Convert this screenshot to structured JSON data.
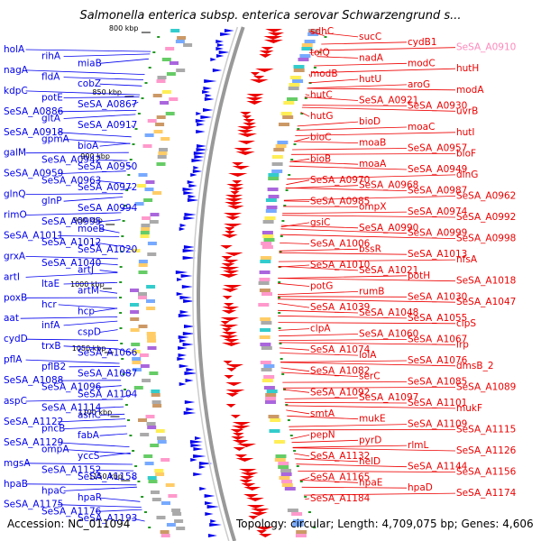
{
  "title": "Salmonella enterica subsp. enterica serovar Schwarzengrund s...",
  "footer": {
    "accession": "Accession: NC_011094",
    "topology": "Topology: circular; Length: 4,709,075 bp; Genes: 4,606"
  },
  "colors": {
    "forward_strand": "#0000ee",
    "reverse_strand": "#ee0000",
    "backbone": "#999999",
    "tick_dot": "#229922",
    "highlight_label": "#ff88bb"
  },
  "ticks": [
    "800 kbp",
    "850 kbp",
    "900 kbp",
    "950 kbp",
    "1000 kbp",
    "1050 kbp",
    "1100 kbp",
    "1150 kbp"
  ],
  "left_labels": [
    "holA",
    "rihA",
    "miaB",
    "nagA",
    "fldA",
    "cobZ",
    "kdpC",
    "potE",
    "SeSA_A0867",
    "SeSA_A0886",
    "gltA",
    "SeSA_A0917",
    "SeSA_A0918",
    "gpmA",
    "bioA",
    "galM",
    "SeSA_A0942",
    "SeSA_A0950",
    "SeSA_A0959",
    "SeSA_A0963",
    "SeSA_A0972",
    "glnQ",
    "glnP",
    "SeSA_A0994",
    "rimO",
    "SeSA_A0995",
    "moeB",
    "SeSA_A1011",
    "SeSA_A1012",
    "SeSA_A1020",
    "grxA",
    "SeSA_A1040",
    "artJ",
    "artI",
    "ltaE",
    "artM",
    "poxB",
    "hcr",
    "hcp",
    "aat",
    "infA",
    "cspD",
    "cydD",
    "trxB",
    "SeSA_A1066",
    "pflA",
    "pflB2",
    "SeSA_A1087",
    "SeSA_A1088",
    "SeSA_A1096",
    "SeSA_A1104",
    "aspC",
    "SeSA_A1114",
    "asnC",
    "SeSA_A1122",
    "pncB",
    "fabA",
    "SeSA_A1129",
    "ompA",
    "yccS",
    "mgsA",
    "SeSA_A1152",
    "SeSA_A1158",
    "hpaB",
    "hpaC",
    "hpaR",
    "SeSA_A1175",
    "SeSA_A1176",
    "SeSA_A1193"
  ],
  "right_labels": [
    "sdhC",
    "sucC",
    "cydB1",
    "SeSA_A0910",
    "tolQ",
    "nadA",
    "modC",
    "hutH",
    "modB",
    "hutU",
    "aroG",
    "modA",
    "hutC",
    "SeSA_A0921",
    "SeSA_A0930",
    "uvrB",
    "hutG",
    "bioD",
    "moaC",
    "hutI",
    "bioC",
    "moaB",
    "SeSA_A0957",
    "bioF",
    "bioB",
    "moaA",
    "SeSA_A0949",
    "dinG",
    "SeSA_A0970",
    "SeSA_A0968",
    "SeSA_A0987",
    "SeSA_A0962",
    "SeSA_A0985",
    "ompX",
    "SeSA_A0974",
    "SeSA_A0992",
    "gsiC",
    "SeSA_A0990",
    "SeSA_A0999",
    "SeSA_A0998",
    "SeSA_A1006",
    "bssR",
    "SeSA_A1013",
    "nfsA",
    "SeSA_A1010",
    "SeSA_A1021",
    "potH",
    "SeSA_A1018",
    "potG",
    "rumB",
    "SeSA_A1030",
    "SeSA_A1047",
    "SeSA_A1039",
    "SeSA_A1048",
    "SeSA_A1055",
    "clpS",
    "clpA",
    "SeSA_A1060",
    "SeSA_A1067",
    "lrp",
    "SeSA_A1074",
    "lolA",
    "SeSA_A1076",
    "dmsB_2",
    "SeSA_A1082",
    "serC",
    "SeSA_A1085",
    "SeSA_A1089",
    "SeSA_A1092",
    "SeSA_A1097",
    "SeSA_A1101",
    "mukF",
    "smtA",
    "mukE",
    "SeSA_A1109",
    "SeSA_A1115",
    "pepN",
    "pyrD",
    "rlmL",
    "SeSA_A1126",
    "SeSA_A1132",
    "helD",
    "SeSA_A1144",
    "SeSA_A1156",
    "SeSA_A1165",
    "hpaE",
    "hpaD",
    "SeSA_A1174",
    "SeSA_A1184"
  ]
}
